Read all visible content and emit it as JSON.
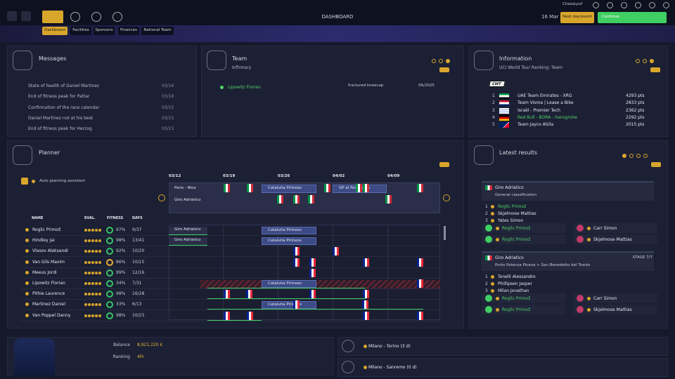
{
  "topbar": {
    "title": "DASHBOARD",
    "date": "16 Mar",
    "user": "ChaosLyuf",
    "next": "Next day/event",
    "continue": "Continue",
    "tabs": [
      "Dashboard",
      "Facilities",
      "Sponsors",
      "Finances",
      "National Team"
    ]
  },
  "messages": {
    "title": "Messages",
    "items": [
      {
        "text": "State of health of Daniel Martinez",
        "date": "03/16"
      },
      {
        "text": "End of fitness peak for Pattar",
        "date": "03/16"
      },
      {
        "text": "Confirmation of the race calendar",
        "date": "03/15"
      },
      {
        "text": "Daniel Martinez not at his best",
        "date": "03/15"
      },
      {
        "text": "End of fitness peak for Herzog",
        "date": "03/15"
      }
    ]
  },
  "team": {
    "title": "Team",
    "subtitle": "Infirmary",
    "injuries": [
      {
        "name": "Lipowitz Florian",
        "injury": "fractured kneecap",
        "until": "06/2025"
      }
    ]
  },
  "information": {
    "title": "Information",
    "subtitle": "UCI World Tour Ranking: Team",
    "badge": "CWT",
    "ranking": [
      {
        "rank": "1",
        "team": "UAE Team Emirates - XRG",
        "points": "4293 pts"
      },
      {
        "rank": "2",
        "team": "Team Visma | Lease a Bike",
        "points": "2833 pts"
      },
      {
        "rank": "3",
        "team": "Israël - Premier Tech",
        "points": "2362 pts"
      },
      {
        "rank": "4",
        "team": "Red Bull - BORA - hansgrohe",
        "points": "2292 pts"
      },
      {
        "rank": "5",
        "team": "Team Jayco AlUla",
        "points": "2015 pts"
      }
    ]
  },
  "planner": {
    "title": "Planner",
    "auto": "Auto planning assistant",
    "weeks": [
      "03/12",
      "03/19",
      "03/26",
      "04/02",
      "04/09"
    ],
    "races": [
      "Paris - Nice",
      "Giro Adriatico",
      "Cataluña Pirineos",
      "GP al País Vasco"
    ],
    "columns": [
      "NAME",
      "EVAL.",
      "FITNESS",
      "DAYS"
    ],
    "riders": [
      {
        "name": "Roglic Primož",
        "fitness": "97%",
        "days": "9/37",
        "events": [
          "Giro Adriatico",
          "Cataluña Pirineos"
        ]
      },
      {
        "name": "Hindley Jai",
        "fitness": "98%",
        "days": "13/41",
        "events": [
          "Giro Adriatico",
          "Cataluña Pirineos"
        ]
      },
      {
        "name": "Vlasov Aleksandr",
        "fitness": "92%",
        "days": "10/20"
      },
      {
        "name": "Van Gils Maxim",
        "fitness": "86%",
        "days": "10/15"
      },
      {
        "name": "Meeus Jordi",
        "fitness": "99%",
        "days": "12/16"
      },
      {
        "name": "Lipowitz Florian",
        "fitness": "34%",
        "days": "7/31",
        "events": [
          "Cataluña Pirineos"
        ]
      },
      {
        "name": "Pithie Laurence",
        "fitness": "98%",
        "days": "16/28"
      },
      {
        "name": "Martinez Daniel",
        "fitness": "33%",
        "days": "6/13",
        "events": [
          "Cataluña Pirineos"
        ]
      },
      {
        "name": "Van Poppel Danny",
        "fitness": "98%",
        "days": "10/23"
      }
    ]
  },
  "results": {
    "title": "Latest results",
    "blocks": [
      {
        "race": "Giro Adriatico",
        "subtitle": "General classification",
        "podium": [
          {
            "pos": "1",
            "name": "Roglic Primož"
          },
          {
            "pos": "2",
            "name": "Skjelmose Mattias"
          },
          {
            "pos": "3",
            "name": "Yates Simon"
          }
        ],
        "jerseys": [
          "Roglic Primož",
          "Carr Simon",
          "Roglic Primož",
          "Skjelmose Mattias"
        ]
      },
      {
        "race": "Giro Adriatico",
        "stage": "STAGE 7/7",
        "subtitle": "Porto Potenza Picena > San Benedetto del Tronto",
        "podium": [
          {
            "pos": "1",
            "name": "Tonelli Alessandro"
          },
          {
            "pos": "2",
            "name": "Phillipsen Jasper"
          },
          {
            "pos": "3",
            "name": "Milan Jonathan"
          }
        ],
        "jerseys": [
          "Roglic Primož",
          "Carr Simon",
          "Roglic Primož",
          "Skjelmose Mattias"
        ]
      }
    ]
  },
  "footer": {
    "balance_label": "Balance",
    "balance": "8,921,220 €",
    "ranking_label": "Ranking",
    "ranking": "4th",
    "upcoming": [
      "Milano - Torino (3 d)",
      "Milano - Sanremo (0 d)"
    ]
  }
}
